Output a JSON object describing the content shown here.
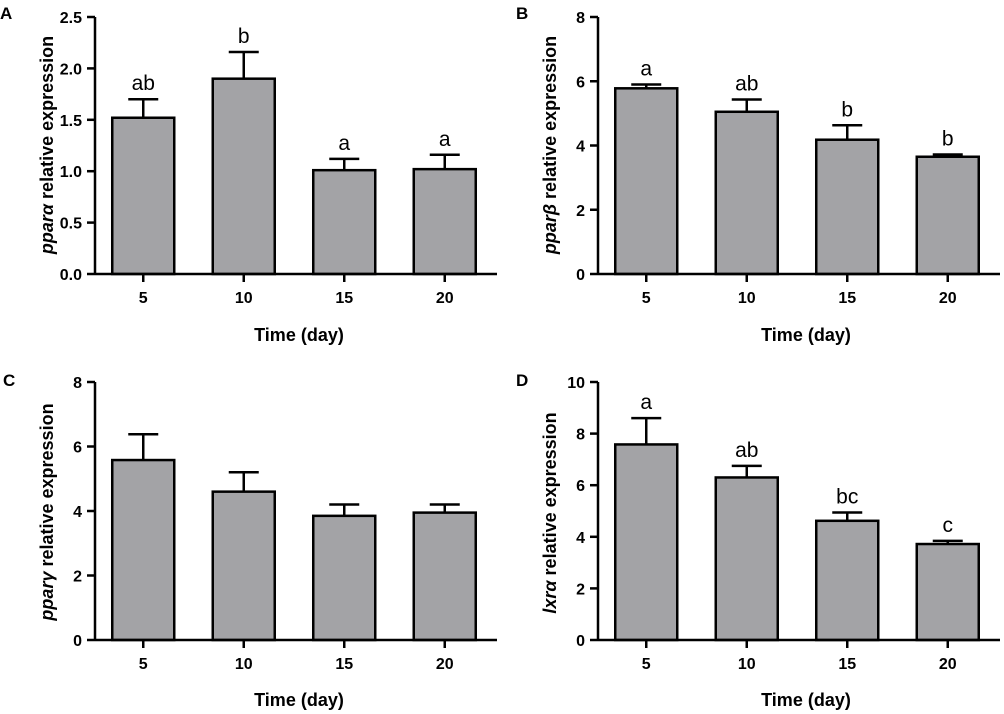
{
  "figure": {
    "bar_fill": "#a3a3a6",
    "stroke": "#000000"
  },
  "chart_data": [
    {
      "panel": "A",
      "type": "bar",
      "categories": [
        "5",
        "10",
        "15",
        "20"
      ],
      "values": [
        1.52,
        1.9,
        1.01,
        1.02
      ],
      "errors": [
        0.18,
        0.26,
        0.11,
        0.14
      ],
      "significance": [
        "ab",
        "b",
        "a",
        "a"
      ],
      "xlabel": "Time (day)",
      "ylabel_italic": "pparα",
      "ylabel_rest": " relative expression",
      "ylim": [
        0,
        2.5
      ],
      "yticks": [
        0.0,
        0.5,
        1.0,
        1.5,
        2.0,
        2.5
      ],
      "ytick_labels": [
        "0.0",
        "0.5",
        "1.0",
        "1.5",
        "2.0",
        "2.5"
      ]
    },
    {
      "panel": "B",
      "type": "bar",
      "categories": [
        "5",
        "10",
        "15",
        "20"
      ],
      "values": [
        5.78,
        5.05,
        4.18,
        3.65
      ],
      "errors": [
        0.12,
        0.38,
        0.45,
        0.07
      ],
      "significance": [
        "a",
        "ab",
        "b",
        "b"
      ],
      "xlabel": "Time (day)",
      "ylabel_italic": "pparβ",
      "ylabel_rest": " relative expression",
      "ylim": [
        0,
        8
      ],
      "yticks": [
        0,
        2,
        4,
        6,
        8
      ],
      "ytick_labels": [
        "0",
        "2",
        "4",
        "6",
        "8"
      ]
    },
    {
      "panel": "C",
      "type": "bar",
      "categories": [
        "5",
        "10",
        "15",
        "20"
      ],
      "values": [
        5.58,
        4.6,
        3.85,
        3.95
      ],
      "errors": [
        0.8,
        0.6,
        0.35,
        0.25
      ],
      "significance": [
        "",
        "",
        "",
        ""
      ],
      "xlabel": "Time (day)",
      "ylabel_italic": "pparγ",
      "ylabel_rest": " relative expression",
      "ylim": [
        0,
        8
      ],
      "yticks": [
        0,
        2,
        4,
        6,
        8
      ],
      "ytick_labels": [
        "0",
        "2",
        "4",
        "6",
        "8"
      ]
    },
    {
      "panel": "D",
      "type": "bar",
      "categories": [
        "5",
        "10",
        "15",
        "20"
      ],
      "values": [
        7.58,
        6.3,
        4.62,
        3.72
      ],
      "errors": [
        1.02,
        0.45,
        0.32,
        0.12
      ],
      "significance": [
        "a",
        "ab",
        "bc",
        "c"
      ],
      "xlabel": "Time (day)",
      "ylabel_italic": "lxrα",
      "ylabel_rest": " relative expression",
      "ylim": [
        0,
        10
      ],
      "yticks": [
        0,
        2,
        4,
        6,
        8,
        10
      ],
      "ytick_labels": [
        "0",
        "2",
        "4",
        "6",
        "8",
        "10"
      ]
    }
  ]
}
